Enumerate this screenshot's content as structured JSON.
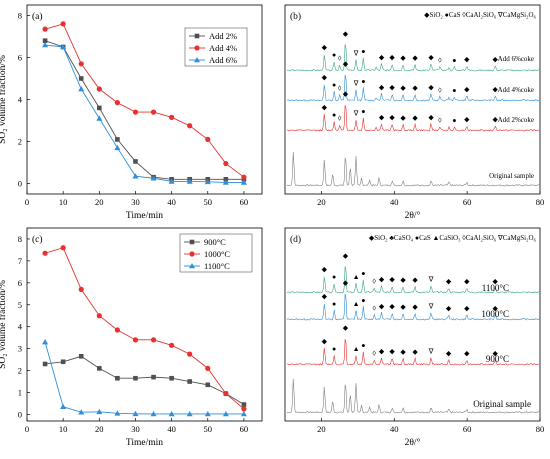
{
  "chart_data": [
    {
      "panel": "(a)",
      "type": "line",
      "xlabel": "Time/min",
      "ylabel": "SO₂ volume fraction/%",
      "xlim": [
        0,
        65
      ],
      "ylim": [
        -0.5,
        8.5
      ],
      "xticks": [
        0,
        10,
        20,
        30,
        40,
        50,
        60
      ],
      "yticks": [
        0,
        2,
        4,
        6,
        8
      ],
      "legend_position": "top-right",
      "series": [
        {
          "name": "Add 2%",
          "color": "#505050",
          "marker": "square",
          "x": [
            5,
            10,
            15,
            20,
            25,
            30,
            35,
            40,
            45,
            50,
            55,
            60
          ],
          "y": [
            6.8,
            6.5,
            5.0,
            3.6,
            2.1,
            1.05,
            0.3,
            0.2,
            0.2,
            0.2,
            0.2,
            0.2
          ]
        },
        {
          "name": "Add 4%",
          "color": "#e8302e",
          "marker": "circle",
          "x": [
            5,
            10,
            15,
            20,
            25,
            30,
            35,
            40,
            45,
            50,
            55,
            60
          ],
          "y": [
            7.35,
            7.6,
            5.7,
            4.5,
            3.85,
            3.4,
            3.4,
            3.15,
            2.75,
            2.1,
            0.95,
            0.3
          ]
        },
        {
          "name": "Add 6%",
          "color": "#2f8fd8",
          "marker": "triangle",
          "x": [
            5,
            10,
            15,
            20,
            25,
            30,
            35,
            40,
            45,
            50,
            55,
            60
          ],
          "y": [
            6.6,
            6.5,
            4.5,
            3.1,
            1.7,
            0.35,
            0.25,
            0.1,
            0.1,
            0.08,
            0.05,
            0.05
          ]
        }
      ]
    },
    {
      "panel": "(b)",
      "type": "line",
      "xlabel": "2θ/°",
      "xlim": [
        10,
        80
      ],
      "xticks": [
        20,
        40,
        60,
        80
      ],
      "legend_text": "◆SiO₂ ●CaS ◊CaAl₂SiO₆ ∇CaMgSi₂O₆",
      "series": [
        {
          "name": "Original sample",
          "color": "#808080"
        },
        {
          "name": "Add 2%coke",
          "color": "#e8302e"
        },
        {
          "name": "Add 4%coke",
          "color": "#2f8fd8"
        },
        {
          "name": "Add 6%coke",
          "color": "#3aa58a"
        }
      ],
      "peaks": [
        {
          "pos": 20.8,
          "h": 0.55,
          "sym": "◆"
        },
        {
          "pos": 23.5,
          "h": 0.3,
          "sym": "●"
        },
        {
          "pos": 25.0,
          "h": 0.18,
          "sym": "◊"
        },
        {
          "pos": 26.6,
          "h": 1.0,
          "sym": "◆"
        },
        {
          "pos": 29.5,
          "h": 0.35,
          "sym": "∇"
        },
        {
          "pos": 31.5,
          "h": 0.42,
          "sym": "●"
        },
        {
          "pos": 35.0,
          "h": 0.1,
          "sym": ""
        },
        {
          "pos": 36.5,
          "h": 0.22,
          "sym": "◆"
        },
        {
          "pos": 39.4,
          "h": 0.22,
          "sym": "◆"
        },
        {
          "pos": 42.4,
          "h": 0.2,
          "sym": "◆"
        },
        {
          "pos": 45.7,
          "h": 0.2,
          "sym": "◆"
        },
        {
          "pos": 50.1,
          "h": 0.22,
          "sym": "◆"
        },
        {
          "pos": 52.5,
          "h": 0.12,
          "sym": "◊"
        },
        {
          "pos": 55.0,
          "h": 0.1,
          "sym": ""
        },
        {
          "pos": 56.5,
          "h": 0.12,
          "sym": "●"
        },
        {
          "pos": 59.9,
          "h": 0.15,
          "sym": "◆"
        },
        {
          "pos": 67.7,
          "h": 0.15,
          "sym": "◆"
        }
      ],
      "orig_peaks": [
        {
          "pos": 12.3,
          "h": 0.9
        },
        {
          "pos": 20.8,
          "h": 0.7
        },
        {
          "pos": 23.1,
          "h": 0.3
        },
        {
          "pos": 26.6,
          "h": 0.85
        },
        {
          "pos": 27.9,
          "h": 0.5
        },
        {
          "pos": 29.5,
          "h": 0.75
        },
        {
          "pos": 31.0,
          "h": 0.2
        },
        {
          "pos": 33.2,
          "h": 0.15
        },
        {
          "pos": 35.8,
          "h": 0.2
        },
        {
          "pos": 39.4,
          "h": 0.12
        },
        {
          "pos": 42.4,
          "h": 0.12
        },
        {
          "pos": 50.1,
          "h": 0.12
        },
        {
          "pos": 55.0,
          "h": 0.08
        },
        {
          "pos": 59.9,
          "h": 0.08
        }
      ]
    },
    {
      "panel": "(c)",
      "type": "line",
      "xlabel": "Time/min",
      "ylabel": "SO₂ volume fraction/%",
      "xlim": [
        0,
        65
      ],
      "ylim": [
        -0.3,
        8.5
      ],
      "xticks": [
        0,
        10,
        20,
        30,
        40,
        50,
        60
      ],
      "yticks": [
        0,
        1,
        2,
        3,
        4,
        5,
        6,
        7,
        8
      ],
      "legend_position": "top-right",
      "series": [
        {
          "name": "900°C",
          "color": "#505050",
          "marker": "square",
          "x": [
            5,
            10,
            15,
            20,
            25,
            30,
            35,
            40,
            45,
            50,
            55,
            60
          ],
          "y": [
            2.3,
            2.4,
            2.65,
            2.1,
            1.65,
            1.65,
            1.7,
            1.65,
            1.5,
            1.35,
            0.95,
            0.45
          ]
        },
        {
          "name": "1000°C",
          "color": "#e8302e",
          "marker": "circle",
          "x": [
            5,
            10,
            15,
            20,
            25,
            30,
            35,
            40,
            45,
            50,
            55,
            60
          ],
          "y": [
            7.35,
            7.6,
            5.7,
            4.5,
            3.85,
            3.4,
            3.4,
            3.15,
            2.75,
            2.1,
            0.95,
            0.25
          ]
        },
        {
          "name": "1100°C",
          "color": "#2f8fd8",
          "marker": "triangle",
          "x": [
            5,
            10,
            15,
            20,
            25,
            30,
            35,
            40,
            45,
            50,
            55,
            60
          ],
          "y": [
            3.3,
            0.35,
            0.1,
            0.12,
            0.05,
            0.03,
            0.02,
            0.02,
            0.02,
            0.02,
            0.02,
            0.02
          ]
        }
      ]
    },
    {
      "panel": "(d)",
      "type": "line",
      "xlabel": "2θ/°",
      "xlim": [
        10,
        80
      ],
      "xticks": [
        20,
        40,
        60,
        80
      ],
      "legend_text": "◆SiO₂ ♣CaSO₄ ●CaS ▲CaSiO₃ ◊CaAl₂SiO₆ ∇CaMgSi₂O₆",
      "series": [
        {
          "name": "Original sample",
          "color": "#808080"
        },
        {
          "name": "900°C",
          "color": "#e8302e"
        },
        {
          "name": "1000°C",
          "color": "#2f8fd8"
        },
        {
          "name": "1100°C",
          "color": "#3aa58a"
        }
      ],
      "peaks": [
        {
          "pos": 20.8,
          "h": 0.55,
          "sym": "◆"
        },
        {
          "pos": 23.5,
          "h": 0.3,
          "sym": "●"
        },
        {
          "pos": 26.6,
          "h": 1.0,
          "sym": "◆"
        },
        {
          "pos": 29.5,
          "h": 0.3,
          "sym": "▲"
        },
        {
          "pos": 31.5,
          "h": 0.42,
          "sym": "●"
        },
        {
          "pos": 34.5,
          "h": 0.15,
          "sym": "◊"
        },
        {
          "pos": 36.5,
          "h": 0.22,
          "sym": "◆"
        },
        {
          "pos": 39.4,
          "h": 0.22,
          "sym": "◆"
        },
        {
          "pos": 42.4,
          "h": 0.2,
          "sym": "◆"
        },
        {
          "pos": 45.7,
          "h": 0.2,
          "sym": "◆"
        },
        {
          "pos": 50.1,
          "h": 0.22,
          "sym": "∇"
        },
        {
          "pos": 54.9,
          "h": 0.15,
          "sym": "◆"
        },
        {
          "pos": 59.9,
          "h": 0.15,
          "sym": "◆"
        },
        {
          "pos": 67.7,
          "h": 0.15,
          "sym": "◆"
        }
      ],
      "orig_peaks": [
        {
          "pos": 12.3,
          "h": 0.9
        },
        {
          "pos": 20.8,
          "h": 0.7
        },
        {
          "pos": 23.1,
          "h": 0.3
        },
        {
          "pos": 26.6,
          "h": 0.85
        },
        {
          "pos": 27.9,
          "h": 0.5
        },
        {
          "pos": 29.5,
          "h": 0.75
        },
        {
          "pos": 31.0,
          "h": 0.2
        },
        {
          "pos": 33.2,
          "h": 0.15
        },
        {
          "pos": 35.8,
          "h": 0.2
        },
        {
          "pos": 39.4,
          "h": 0.12
        },
        {
          "pos": 42.4,
          "h": 0.12
        },
        {
          "pos": 50.1,
          "h": 0.12
        },
        {
          "pos": 55.0,
          "h": 0.08
        },
        {
          "pos": 59.9,
          "h": 0.08
        }
      ]
    }
  ]
}
